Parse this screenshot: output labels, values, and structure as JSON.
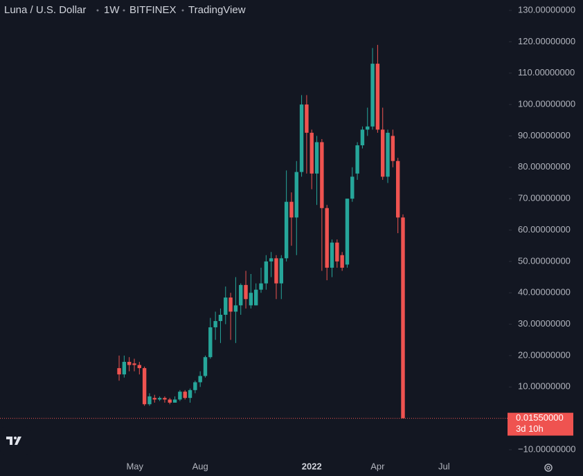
{
  "chart_data": {
    "type": "candlestick",
    "title": "Luna / U.S. Dollar",
    "interval": "1W",
    "exchange": "BITFINEX",
    "source": "TradingView",
    "up_color": "#26a69a",
    "down_color": "#ef5350",
    "x": [
      0,
      1,
      2,
      3,
      4,
      5,
      6,
      7,
      8,
      9,
      10,
      11,
      12,
      13,
      14,
      15,
      16,
      17,
      18,
      19,
      20,
      21,
      22,
      23,
      24,
      25,
      26,
      27,
      28,
      29,
      30,
      31,
      32,
      33,
      34,
      35,
      36,
      37,
      38,
      39,
      40,
      41,
      42,
      43,
      44,
      45,
      46,
      47,
      48,
      49,
      50,
      51,
      52,
      53,
      54,
      55,
      56
    ],
    "open": [
      16,
      14,
      18,
      17.5,
      17,
      16,
      4.5,
      6.5,
      6,
      6.5,
      6,
      5,
      6,
      8.5,
      6.5,
      9,
      11.5,
      13.5,
      19.5,
      29,
      31,
      33,
      38.5,
      34,
      36,
      42.5,
      36,
      36,
      41,
      43,
      50,
      51,
      43,
      51,
      69,
      64,
      78.5,
      100,
      91,
      78,
      88,
      67,
      48,
      56,
      52,
      49,
      70,
      78,
      87,
      92,
      93,
      113,
      92,
      77,
      90,
      82,
      64
    ],
    "high": [
      20,
      20,
      19.5,
      19,
      18,
      16.5,
      8,
      7.5,
      7,
      7,
      6.5,
      7,
      9,
      9,
      9.5,
      12,
      15,
      20,
      32,
      34,
      35,
      42,
      40,
      45,
      43,
      47,
      46,
      43,
      48,
      52,
      53,
      52,
      52,
      79,
      72,
      82,
      103,
      103,
      92,
      90,
      89,
      68,
      57,
      57,
      53,
      70,
      80,
      88,
      93,
      99,
      118,
      119,
      99,
      92,
      92,
      83,
      65
    ],
    "low": [
      12,
      13,
      15,
      15,
      14,
      4,
      4,
      5,
      5.5,
      5,
      4.5,
      5,
      5.5,
      6,
      5,
      8,
      10,
      13,
      19,
      25,
      24,
      30,
      25,
      24,
      33,
      35,
      35,
      36,
      40,
      41,
      45,
      38,
      38,
      50,
      55,
      52,
      77,
      78,
      73,
      68,
      47,
      44,
      45,
      48,
      47,
      48,
      69,
      76,
      86,
      90,
      92,
      91,
      76,
      75,
      80,
      59,
      0.0155
    ],
    "close": [
      14,
      18,
      17,
      17,
      16,
      4.5,
      7,
      6,
      6.5,
      6,
      5,
      6,
      8.5,
      6.5,
      9,
      11.5,
      13.5,
      19.5,
      29,
      31,
      33,
      38.5,
      34,
      36,
      42.5,
      38,
      40,
      41,
      43,
      50,
      51,
      43,
      51,
      69,
      64,
      78.5,
      100,
      91,
      78,
      88,
      67,
      48,
      56,
      50,
      48,
      70,
      77,
      87,
      92,
      93,
      113,
      92,
      77,
      91,
      82,
      64,
      0.0155
    ],
    "ylim": [
      -13.3,
      133.3
    ],
    "yticks": [
      {
        "value": 130,
        "label": "130.00000000"
      },
      {
        "value": 120,
        "label": "120.00000000"
      },
      {
        "value": 110,
        "label": "110.00000000"
      },
      {
        "value": 100,
        "label": "100.00000000"
      },
      {
        "value": 90,
        "label": "90.00000000"
      },
      {
        "value": 80,
        "label": "80.00000000"
      },
      {
        "value": 70,
        "label": "70.00000000"
      },
      {
        "value": 60,
        "label": "60.00000000"
      },
      {
        "value": 50,
        "label": "50.00000000"
      },
      {
        "value": 40,
        "label": "40.00000000"
      },
      {
        "value": 30,
        "label": "30.00000000"
      },
      {
        "value": 20,
        "label": "20.00000000"
      },
      {
        "value": 10,
        "label": "10.00000000"
      },
      {
        "value": -10,
        "label": "−10.00000000"
      }
    ],
    "xlim": [
      -23.5,
      76.9
    ],
    "xticks": [
      {
        "value": 3.1,
        "label": "May"
      },
      {
        "value": 16,
        "label": "Aug"
      },
      {
        "value": 38,
        "label": "2022"
      },
      {
        "value": 51,
        "label": "Apr"
      },
      {
        "value": 64.1,
        "label": "Jul"
      }
    ],
    "last_price": {
      "value": 0.0155,
      "label": "0.01550000"
    },
    "countdown": "3d 10h"
  }
}
